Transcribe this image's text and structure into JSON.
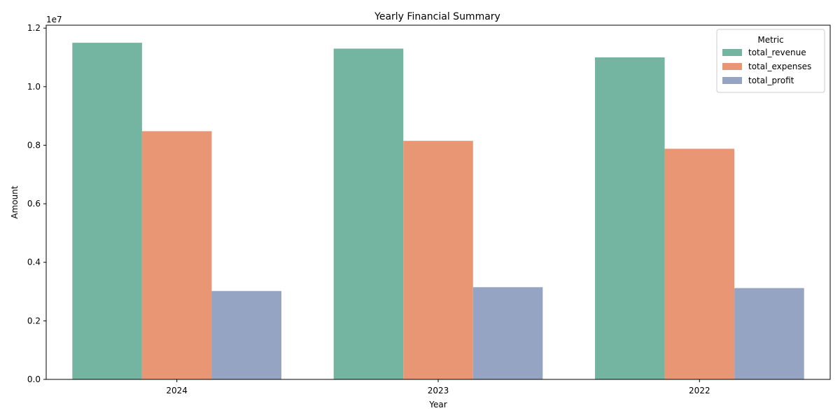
{
  "chart_data": {
    "type": "bar",
    "title": "Yearly Financial Summary",
    "xlabel": "Year",
    "ylabel": "Amount",
    "offset_text": "1e7",
    "categories": [
      "2024",
      "2023",
      "2022"
    ],
    "ylim": [
      0,
      12100000
    ],
    "yticks": [
      0,
      2000000,
      4000000,
      6000000,
      8000000,
      10000000,
      12000000
    ],
    "ytick_labels": [
      "0.0",
      "0.2",
      "0.4",
      "0.6",
      "0.8",
      "1.0",
      "1.2"
    ],
    "grid": false,
    "legend": {
      "title": "Metric",
      "position": "top-right"
    },
    "series": [
      {
        "name": "total_revenue",
        "color": "#73b5a0",
        "values": [
          11500000,
          11300000,
          11000000
        ]
      },
      {
        "name": "total_expenses",
        "color": "#e89674",
        "values": [
          8480000,
          8150000,
          7880000
        ]
      },
      {
        "name": "total_profit",
        "color": "#95a4c2",
        "values": [
          3020000,
          3150000,
          3120000
        ]
      }
    ]
  }
}
